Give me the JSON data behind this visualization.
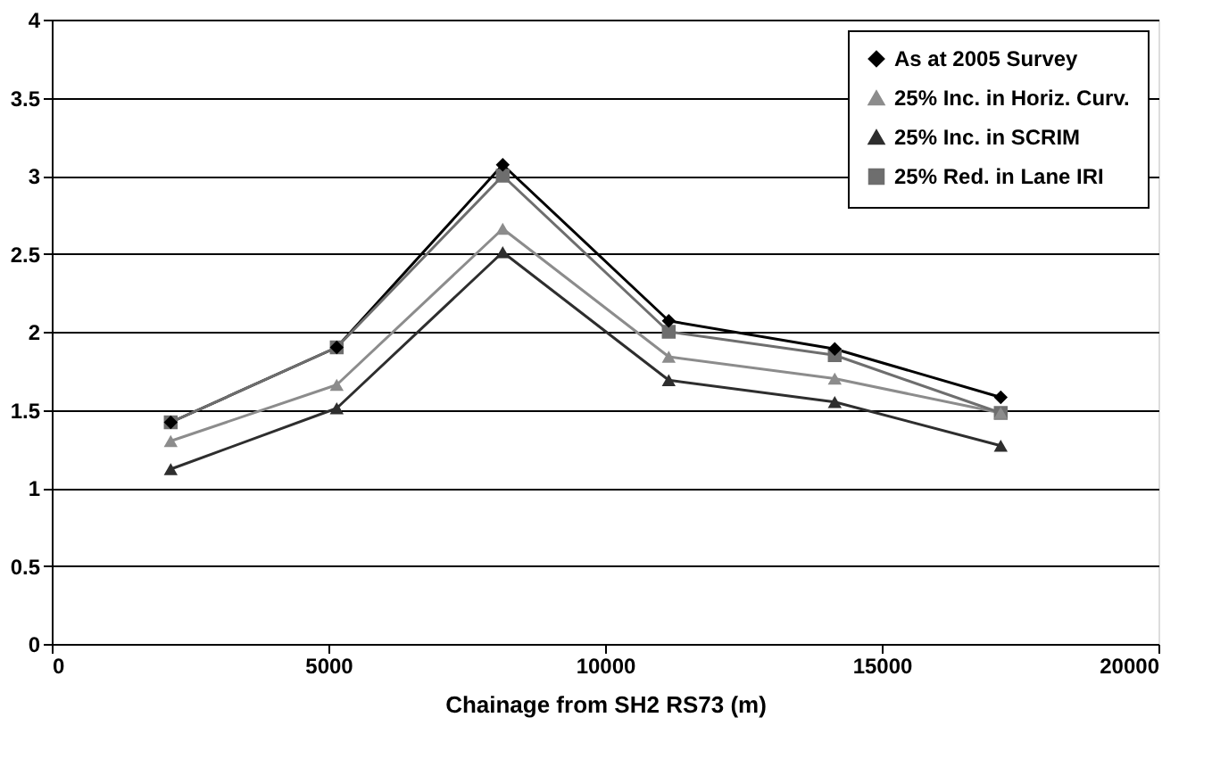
{
  "chart_data": {
    "type": "line",
    "xlabel": "Chainage from SH2 RS73 (m)",
    "xlim": [
      0,
      20000
    ],
    "xticks": [
      0,
      5000,
      10000,
      15000,
      20000
    ],
    "ylim": [
      0,
      4
    ],
    "yticks": [
      0,
      0.5,
      1,
      1.5,
      2,
      2.5,
      3,
      3.5,
      4
    ],
    "grid": "y",
    "legend": "top right",
    "line_style": "solid",
    "x": [
      2150,
      5150,
      8150,
      11150,
      14150,
      17150
    ],
    "series": [
      {
        "name": "As at 2005 Survey",
        "color": "#000000",
        "marker": "diamond",
        "values": [
          1.42,
          1.9,
          3.07,
          2.07,
          1.89,
          1.58
        ]
      },
      {
        "name": "25% Inc. in Horiz. Curv.",
        "color": "#8c8c8c",
        "marker": "triangle",
        "values": [
          1.3,
          1.66,
          2.66,
          1.84,
          1.7,
          1.48
        ]
      },
      {
        "name": "25% Inc. in SCRIM",
        "color": "#2e2e2e",
        "marker": "triangle",
        "values": [
          1.12,
          1.51,
          2.51,
          1.69,
          1.55,
          1.27
        ]
      },
      {
        "name": "25% Red. in Lane IRI",
        "color": "#6e6e6e",
        "marker": "square",
        "values": [
          1.42,
          1.9,
          3.0,
          2.0,
          1.85,
          1.48
        ]
      }
    ]
  }
}
